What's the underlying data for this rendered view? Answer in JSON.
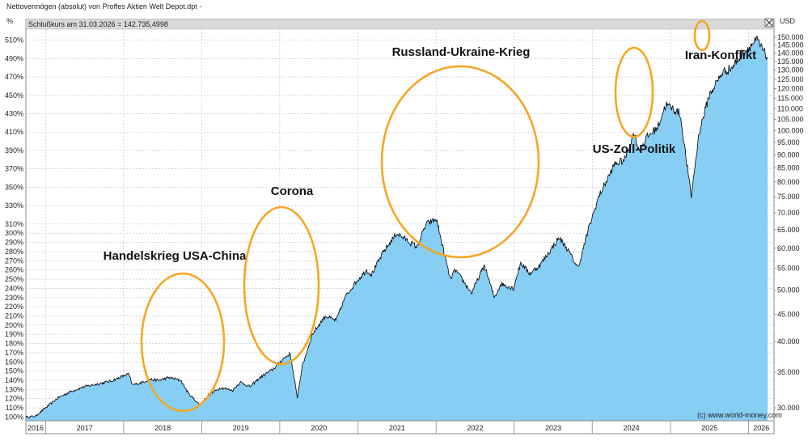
{
  "header": {
    "title": "Nettovermögen (absolut) von Proffes Aktien Welt Depot.dpt -",
    "subtitle": "Schlußkurs am 31.03.2026 = 142.735,4998",
    "left_unit": "%",
    "right_unit": "USD"
  },
  "footer": {
    "copyright": "(c) www.world-money.com"
  },
  "chart_data": {
    "type": "area",
    "title": "Nettovermögen (absolut) von Proffes Aktien Welt Depot.dpt -",
    "subtitle": "Schlußkurs am 31.03.2026 = 142.735,4998",
    "x_axis": {
      "type": "date",
      "range": [
        "2016-10-01",
        "2026-04-30"
      ],
      "tick_labels": [
        "2016",
        "2017",
        "2018",
        "2019",
        "2020",
        "2021",
        "2022",
        "2023",
        "2024",
        "2025",
        "2026"
      ]
    },
    "y_left": {
      "unit": "%",
      "range": [
        96,
        522
      ],
      "tick_labels": [
        "100%",
        "110%",
        "120%",
        "130%",
        "140%",
        "150%",
        "160%",
        "170%",
        "180%",
        "190%",
        "200%",
        "210%",
        "220%",
        "230%",
        "240%",
        "250%",
        "260%",
        "270%",
        "280%",
        "290%",
        "300%",
        "310%",
        "330%",
        "350%",
        "370%",
        "390%",
        "410%",
        "430%",
        "450%",
        "470%",
        "490%",
        "510%"
      ]
    },
    "y_right": {
      "unit": "USD",
      "scale": "log",
      "tick_labels": [
        "30.000",
        "35.000",
        "40.000",
        "45.000",
        "50.000",
        "55.000",
        "60.000",
        "65.000",
        "70.000",
        "75.000",
        "80.000",
        "85.000",
        "90.000",
        "95.000",
        "100.000",
        "105.000",
        "110.000",
        "115.000",
        "120.000",
        "125.000",
        "130.000",
        "135.000",
        "140.000",
        "145.000",
        "150.000"
      ]
    },
    "grid": true,
    "fill_color": "#87cef5",
    "line_color": "#000000",
    "annotation_color": "#f5a623",
    "series": [
      {
        "x": [
          "2016-10-01",
          "2016-11-15",
          "2017-01-01",
          "2017-03-01",
          "2017-05-01",
          "2017-07-01",
          "2017-09-01",
          "2017-11-01",
          "2018-01-25",
          "2018-02-10",
          "2018-03-20",
          "2018-05-01",
          "2018-06-15",
          "2018-08-01",
          "2018-09-25",
          "2018-10-30",
          "2018-12-24",
          "2019-02-01",
          "2019-04-01",
          "2019-05-25",
          "2019-07-01",
          "2019-08-15",
          "2019-10-01",
          "2019-12-01",
          "2020-01-15",
          "2020-02-19",
          "2020-03-23",
          "2020-04-15",
          "2020-06-01",
          "2020-08-01",
          "2020-09-20",
          "2020-11-01",
          "2020-12-15",
          "2021-02-10",
          "2021-03-05",
          "2021-05-01",
          "2021-07-01",
          "2021-09-01",
          "2021-10-05",
          "2021-11-15",
          "2022-01-03",
          "2022-02-01",
          "2022-03-08",
          "2022-04-01",
          "2022-06-16",
          "2022-08-15",
          "2022-09-30",
          "2022-11-01",
          "2022-12-28",
          "2023-02-01",
          "2023-03-15",
          "2023-05-01",
          "2023-07-30",
          "2023-09-01",
          "2023-10-27",
          "2023-12-15",
          "2024-02-01",
          "2024-04-15",
          "2024-06-01",
          "2024-07-15",
          "2024-08-05",
          "2024-09-15",
          "2024-11-01",
          "2024-12-10",
          "2025-01-15",
          "2025-02-15",
          "2025-04-08",
          "2025-05-15",
          "2025-07-01",
          "2025-09-01",
          "2025-10-15",
          "2025-12-01",
          "2026-01-15",
          "2026-02-10",
          "2026-03-31"
        ],
        "y": [
          100,
          101,
          110,
          121,
          128,
          133,
          136,
          139,
          147,
          135,
          137,
          141,
          140,
          143,
          140,
          126,
          113,
          124,
          132,
          129,
          138,
          133,
          143,
          152,
          163,
          169,
          121,
          155,
          190,
          210,
          205,
          230,
          245,
          260,
          255,
          280,
          300,
          290,
          285,
          310,
          315,
          285,
          250,
          260,
          235,
          265,
          230,
          245,
          240,
          268,
          256,
          265,
          295,
          285,
          262,
          305,
          340,
          375,
          380,
          410,
          390,
          405,
          415,
          440,
          435,
          430,
          340,
          410,
          450,
          475,
          480,
          495,
          505,
          510,
          490
        ]
      }
    ],
    "annotations": [
      {
        "label": "Handelskrieg USA-China",
        "x": "2018-12-01",
        "y": 125
      },
      {
        "label": "Corona",
        "x": "2020-04-01",
        "y": 175
      },
      {
        "label": "Russland-Ukraine-Krieg",
        "x": "2022-06-15",
        "y": 270
      },
      {
        "label": "US-Zoll-Politik",
        "x": "2025-04-01",
        "y": 360
      },
      {
        "label": "Iran-Konflikt",
        "x": "2026-03-01",
        "y": 500
      }
    ]
  }
}
